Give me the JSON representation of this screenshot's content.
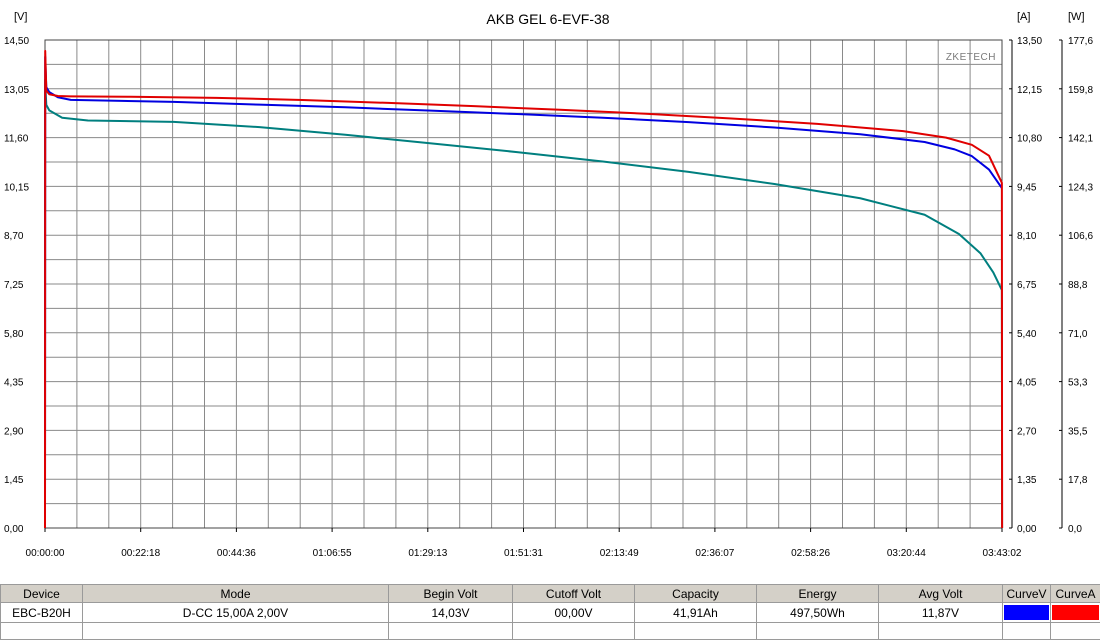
{
  "chart_data": {
    "type": "line",
    "title": "AKB GEL  6-EVF-38",
    "watermark": "ZKETECH",
    "units": {
      "left": "[V]",
      "right1": "[A]",
      "right2": "[W]"
    },
    "x_tick_labels": [
      "00:00:00",
      "00:22:18",
      "00:44:36",
      "01:06:55",
      "01:29:13",
      "01:51:31",
      "02:13:49",
      "02:36:07",
      "02:58:26",
      "03:20:44",
      "03:43:02"
    ],
    "y_left_tick_labels": [
      "0,00",
      "1,45",
      "2,90",
      "4,35",
      "5,80",
      "7,25",
      "8,70",
      "10,15",
      "11,60",
      "13,05",
      "14,50"
    ],
    "y_right1_tick_labels": [
      "0,00",
      "1,35",
      "2,70",
      "4,05",
      "5,40",
      "6,75",
      "8,10",
      "9,45",
      "10,80",
      "12,15",
      "13,50"
    ],
    "y_right2_tick_labels": [
      "0,0",
      "17,8",
      "35,5",
      "53,3",
      "71,0",
      "88,8",
      "106,6",
      "124,3",
      "142,1",
      "159,8",
      "177,6"
    ],
    "xlim_minutes": [
      0,
      223.03
    ],
    "ylim_left": [
      0,
      14.5
    ],
    "ylim_right1": [
      0,
      13.5
    ],
    "ylim_right2": [
      0,
      177.6
    ],
    "grid": true,
    "series": [
      {
        "color": "#0000e0",
        "axis": "left",
        "points": [
          [
            0,
            0
          ],
          [
            0.05,
            14.0
          ],
          [
            0.3,
            13.1
          ],
          [
            1,
            12.95
          ],
          [
            3,
            12.8
          ],
          [
            6,
            12.72
          ],
          [
            15,
            12.7
          ],
          [
            30,
            12.66
          ],
          [
            50,
            12.58
          ],
          [
            70,
            12.5
          ],
          [
            90,
            12.4
          ],
          [
            110,
            12.3
          ],
          [
            130,
            12.19
          ],
          [
            150,
            12.06
          ],
          [
            170,
            11.9
          ],
          [
            190,
            11.7
          ],
          [
            205,
            11.47
          ],
          [
            212,
            11.25
          ],
          [
            216,
            11.05
          ],
          [
            220,
            10.65
          ],
          [
            223,
            10.1
          ]
        ]
      },
      {
        "color": "#e00000",
        "axis": "right1",
        "points": [
          [
            0,
            0
          ],
          [
            0.05,
            13.2
          ],
          [
            0.3,
            12.1
          ],
          [
            1,
            12.0
          ],
          [
            3,
            11.95
          ],
          [
            6,
            11.94
          ],
          [
            20,
            11.93
          ],
          [
            40,
            11.9
          ],
          [
            60,
            11.84
          ],
          [
            80,
            11.76
          ],
          [
            100,
            11.67
          ],
          [
            120,
            11.57
          ],
          [
            140,
            11.46
          ],
          [
            160,
            11.33
          ],
          [
            180,
            11.18
          ],
          [
            200,
            10.98
          ],
          [
            210,
            10.8
          ],
          [
            216,
            10.6
          ],
          [
            220,
            10.3
          ],
          [
            223,
            9.55
          ],
          [
            223.05,
            0
          ]
        ]
      },
      {
        "color": "#007f7f",
        "axis": "right2",
        "points": [
          [
            0,
            0
          ],
          [
            0.02,
            163
          ],
          [
            0.3,
            154
          ],
          [
            1,
            152
          ],
          [
            4,
            149.3
          ],
          [
            10,
            148.3
          ],
          [
            30,
            147.8
          ],
          [
            50,
            145.9
          ],
          [
            70,
            143.1
          ],
          [
            90,
            140
          ],
          [
            110,
            136.8
          ],
          [
            130,
            133.4
          ],
          [
            150,
            129.6
          ],
          [
            170,
            125.2
          ],
          [
            190,
            120
          ],
          [
            205,
            114
          ],
          [
            213,
            107
          ],
          [
            218,
            100
          ],
          [
            221,
            93
          ],
          [
            223,
            86.6
          ],
          [
            223.05,
            0
          ]
        ]
      }
    ]
  },
  "table": {
    "headers": [
      "Device",
      "Mode",
      "Begin Volt",
      "Cutoff Volt",
      "Capacity",
      "Energy",
      "Avg Volt",
      "CurveV",
      "CurveA"
    ],
    "row": [
      "EBC-B20H",
      "D-CC  15,00A  2,00V",
      "14,03V",
      "00,00V",
      "41,91Ah",
      "497,50Wh",
      "11,87V"
    ],
    "curve_colors": {
      "curveV": "#0000ff",
      "curveA": "#ff0000"
    }
  }
}
